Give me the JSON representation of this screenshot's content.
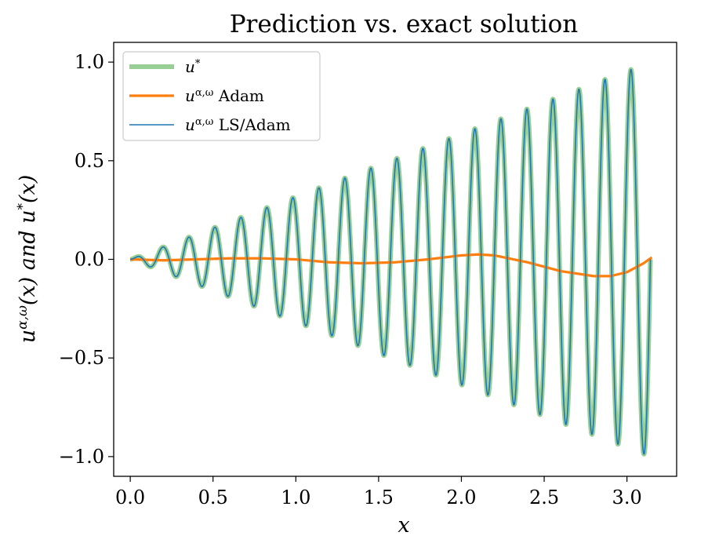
{
  "chart_data": {
    "type": "line",
    "title": "Prediction vs. exact solution",
    "xlabel": "x",
    "ylabel": "u^{α,ω}(x)   and   u*(x)",
    "xlim": [
      -0.1,
      3.3
    ],
    "ylim": [
      -1.1,
      1.1
    ],
    "xticks": [
      0.0,
      0.5,
      1.0,
      1.5,
      2.0,
      2.5,
      3.0
    ],
    "xtick_labels": [
      "0.0",
      "0.5",
      "1.0",
      "1.5",
      "2.0",
      "2.5",
      "3.0"
    ],
    "yticks": [
      1.0,
      0.5,
      0.0,
      -0.5,
      -1.0
    ],
    "ytick_labels": [
      "1.0",
      "0.5",
      "0.0",
      "−0.5",
      "−1.0"
    ],
    "grid": false,
    "legend_position": "upper-left",
    "colors": {
      "exact": "#98cf95",
      "adam": "#ff7f0e",
      "ls_adam": "#1f77b4"
    },
    "series": [
      {
        "name": "u*",
        "formula": "x * sin(40 x) / pi",
        "x_range": [
          0,
          3.14159
        ]
      },
      {
        "name": "u^{α,ω} Adam",
        "x": [
          0.0,
          0.2,
          0.4,
          0.6,
          0.8,
          1.0,
          1.2,
          1.4,
          1.6,
          1.8,
          2.0,
          2.1,
          2.2,
          2.4,
          2.6,
          2.8,
          2.9,
          3.0,
          3.1,
          3.15
        ],
        "y": [
          0.0,
          -0.005,
          0.0,
          0.005,
          0.005,
          0.0,
          -0.015,
          -0.02,
          -0.015,
          0.0,
          0.02,
          0.025,
          0.02,
          -0.015,
          -0.06,
          -0.085,
          -0.085,
          -0.065,
          -0.02,
          0.01
        ]
      },
      {
        "name": "u^{α,ω} LS/Adam",
        "formula": "x * sin(40 x) / pi",
        "x_range": [
          0,
          3.14159
        ]
      }
    ],
    "legend": [
      {
        "label_main": "u",
        "label_sup": "*",
        "label_rest": ""
      },
      {
        "label_main": "u",
        "label_sup": "α,ω",
        "label_rest": " Adam"
      },
      {
        "label_main": "u",
        "label_sup": "α,ω",
        "label_rest": " LS/Adam"
      }
    ]
  }
}
